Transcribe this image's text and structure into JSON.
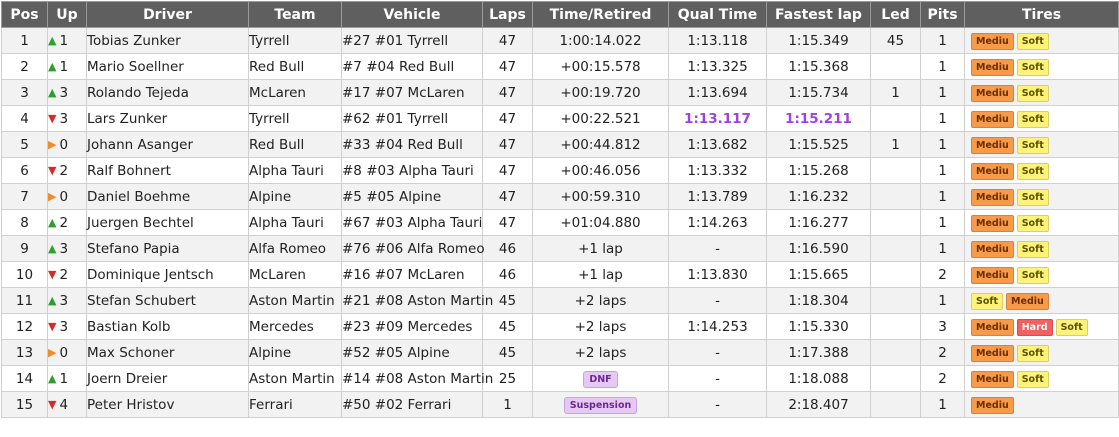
{
  "headers": [
    "Pos",
    "Up",
    "Driver",
    "Team",
    "Vehicle",
    "Laps",
    "Time/Retired",
    "Qual Time",
    "Fastest lap",
    "Led",
    "Pits",
    "Tires"
  ],
  "colors": {
    "up": "#2e9e2e",
    "down": "#d42a2a",
    "same": "#f08c28",
    "tire_medium_bg": "#f79a4a",
    "tire_medium_fg": "#6a2e00",
    "tire_soft_bg": "#fff27a",
    "tire_soft_fg": "#5a5200",
    "tire_hard_bg": "#f26060",
    "tire_hard_fg": "#ffffff",
    "best_purple": "#a040e0"
  },
  "rows": [
    {
      "pos": "1",
      "dir": "up",
      "up": "1",
      "driver": "Tobias Zunker",
      "team": "Tyrrell",
      "vehicle": "#27 #01 Tyrrell",
      "laps": "47",
      "time": "1:00:14.022",
      "qual": "1:13.118",
      "fastest": "1:15.349",
      "led": "45",
      "pits": "1",
      "tires": [
        "Mediu",
        "Soft"
      ]
    },
    {
      "pos": "2",
      "dir": "up",
      "up": "1",
      "driver": "Mario Soellner",
      "team": "Red Bull",
      "vehicle": "#7 #04 Red Bull",
      "laps": "47",
      "time": "+00:15.578",
      "qual": "1:13.325",
      "fastest": "1:15.368",
      "led": "",
      "pits": "1",
      "tires": [
        "Mediu",
        "Soft"
      ]
    },
    {
      "pos": "3",
      "dir": "up",
      "up": "3",
      "driver": "Rolando Tejeda",
      "team": "McLaren",
      "vehicle": "#17 #07 McLaren",
      "laps": "47",
      "time": "+00:19.720",
      "qual": "1:13.694",
      "fastest": "1:15.734",
      "led": "1",
      "pits": "1",
      "tires": [
        "Mediu",
        "Soft"
      ]
    },
    {
      "pos": "4",
      "dir": "down",
      "up": "3",
      "driver": "Lars Zunker",
      "team": "Tyrrell",
      "vehicle": "#62 #01 Tyrrell",
      "laps": "47",
      "time": "+00:22.521",
      "qual": "1:13.117",
      "fastest": "1:15.211",
      "led": "",
      "pits": "1",
      "tires": [
        "Mediu",
        "Soft"
      ],
      "best_qual": true,
      "best_lap": true
    },
    {
      "pos": "5",
      "dir": "same",
      "up": "0",
      "driver": "Johann Asanger",
      "team": "Red Bull",
      "vehicle": "#33 #04 Red Bull",
      "laps": "47",
      "time": "+00:44.812",
      "qual": "1:13.682",
      "fastest": "1:15.525",
      "led": "1",
      "pits": "1",
      "tires": [
        "Mediu",
        "Soft"
      ]
    },
    {
      "pos": "6",
      "dir": "down",
      "up": "2",
      "driver": "Ralf Bohnert",
      "team": "Alpha Tauri",
      "vehicle": "#8 #03 Alpha Tauri",
      "laps": "47",
      "time": "+00:46.056",
      "qual": "1:13.332",
      "fastest": "1:15.268",
      "led": "",
      "pits": "1",
      "tires": [
        "Mediu",
        "Soft"
      ]
    },
    {
      "pos": "7",
      "dir": "same",
      "up": "0",
      "driver": "Daniel Boehme",
      "team": "Alpine",
      "vehicle": "#5 #05 Alpine",
      "laps": "47",
      "time": "+00:59.310",
      "qual": "1:13.789",
      "fastest": "1:16.232",
      "led": "",
      "pits": "1",
      "tires": [
        "Mediu",
        "Soft"
      ]
    },
    {
      "pos": "8",
      "dir": "up",
      "up": "2",
      "driver": "Juergen Bechtel",
      "team": "Alpha Tauri",
      "vehicle": "#67 #03 Alpha Tauri",
      "laps": "47",
      "time": "+01:04.880",
      "qual": "1:14.263",
      "fastest": "1:16.277",
      "led": "",
      "pits": "1",
      "tires": [
        "Mediu",
        "Soft"
      ]
    },
    {
      "pos": "9",
      "dir": "up",
      "up": "3",
      "driver": "Stefano Papia",
      "team": "Alfa Romeo",
      "vehicle": "#76 #06 Alfa Romeo",
      "laps": "46",
      "time": "+1 lap",
      "qual": "-",
      "fastest": "1:16.590",
      "led": "",
      "pits": "1",
      "tires": [
        "Mediu",
        "Soft"
      ]
    },
    {
      "pos": "10",
      "dir": "down",
      "up": "2",
      "driver": "Dominique Jentsch",
      "team": "McLaren",
      "vehicle": "#16 #07 McLaren",
      "laps": "46",
      "time": "+1 lap",
      "qual": "1:13.830",
      "fastest": "1:15.665",
      "led": "",
      "pits": "2",
      "tires": [
        "Mediu",
        "Soft"
      ]
    },
    {
      "pos": "11",
      "dir": "up",
      "up": "3",
      "driver": "Stefan Schubert",
      "team": "Aston Martin",
      "vehicle": "#21 #08 Aston Martin",
      "laps": "45",
      "time": "+2 laps",
      "qual": "-",
      "fastest": "1:18.304",
      "led": "",
      "pits": "1",
      "tires": [
        "Soft",
        "Mediu"
      ]
    },
    {
      "pos": "12",
      "dir": "down",
      "up": "3",
      "driver": "Bastian Kolb",
      "team": "Mercedes",
      "vehicle": "#23 #09 Mercedes",
      "laps": "45",
      "time": "+2 laps",
      "qual": "1:14.253",
      "fastest": "1:15.330",
      "led": "",
      "pits": "3",
      "tires": [
        "Mediu",
        "Hard",
        "Soft"
      ]
    },
    {
      "pos": "13",
      "dir": "same",
      "up": "0",
      "driver": "Max Schoner",
      "team": "Alpine",
      "vehicle": "#52 #05 Alpine",
      "laps": "45",
      "time": "+2 laps",
      "qual": "-",
      "fastest": "1:17.388",
      "led": "",
      "pits": "2",
      "tires": [
        "Mediu",
        "Soft"
      ]
    },
    {
      "pos": "14",
      "dir": "up",
      "up": "1",
      "driver": "Joern Dreier",
      "team": "Aston Martin",
      "vehicle": "#14 #08 Aston Martin",
      "laps": "25",
      "time": "DNF",
      "status": true,
      "qual": "-",
      "fastest": "1:18.088",
      "led": "",
      "pits": "2",
      "tires": [
        "Mediu",
        "Soft"
      ]
    },
    {
      "pos": "15",
      "dir": "down",
      "up": "4",
      "driver": "Peter Hristov",
      "team": "Ferrari",
      "vehicle": "#50 #02 Ferrari",
      "laps": "1",
      "time": "Suspension",
      "status": true,
      "qual": "-",
      "fastest": "2:18.407",
      "led": "",
      "pits": "1",
      "tires": [
        "Mediu"
      ]
    }
  ]
}
